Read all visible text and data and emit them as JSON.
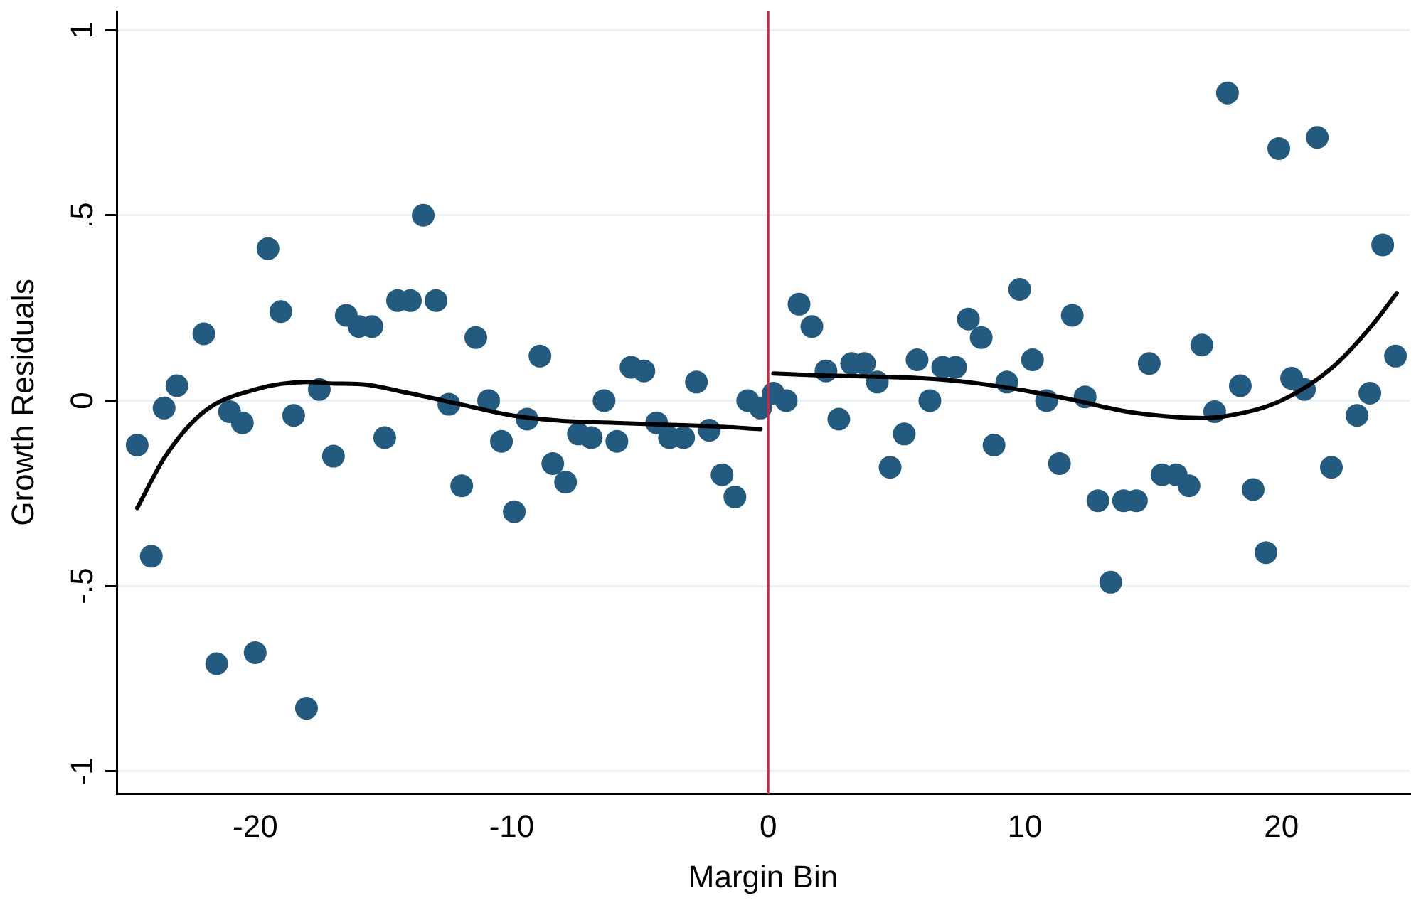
{
  "chart_data": {
    "type": "scatter",
    "xlabel": "Margin Bin",
    "ylabel": "Growth Residuals",
    "xlim": [
      -25.4,
      25
    ],
    "ylim": [
      -1.06,
      1.05
    ],
    "xticks": [
      -20,
      -10,
      0,
      10,
      20
    ],
    "yticks": [
      {
        "value": -1,
        "label": "-1"
      },
      {
        "value": -0.5,
        "label": "-.5"
      },
      0,
      {
        "value": 0.5,
        "label": ".5"
      },
      1
    ],
    "grid": "y",
    "legend": false,
    "marker": "circle",
    "ref_lines": [
      {
        "axis": "x",
        "value": 0,
        "color": "#d6213e"
      }
    ],
    "series": [
      {
        "color": "#235a80",
        "x": [
          -24.6,
          -24.05,
          -23.55,
          -23.05,
          -22,
          -21.5,
          -21,
          -20.5,
          -20,
          -19.5,
          -19,
          -18.5,
          -18,
          -17.5,
          -16.95,
          -16.45,
          -15.95,
          -15.45,
          -14.95,
          -14.45,
          -13.95,
          -13.45,
          -12.95,
          -12.45,
          -11.95,
          -11.4,
          -10.9,
          -10.4,
          -9.9,
          -9.4,
          -8.9,
          -8.4,
          -7.9,
          -7.4,
          -6.9,
          -6.4,
          -5.9,
          -5.35,
          -4.85,
          -4.35,
          -3.85,
          -3.3,
          -2.8,
          -2.3,
          -1.8,
          -1.3,
          -0.8,
          -0.3,
          0.2,
          0.7,
          1.2,
          1.7,
          2.25,
          2.75,
          3.25,
          3.75,
          4.25,
          4.75,
          5.3,
          5.8,
          6.3,
          6.8,
          7.3,
          7.8,
          8.3,
          8.8,
          9.3,
          9.8,
          10.3,
          10.85,
          11.35,
          11.85,
          12.35,
          12.85,
          13.35,
          13.85,
          14.35,
          14.85,
          15.35,
          15.9,
          16.4,
          16.9,
          17.4,
          17.9,
          18.4,
          18.9,
          19.4,
          19.9,
          20.4,
          20.9,
          21.4,
          21.95,
          22.95,
          23.45,
          23.95,
          24.45
        ],
        "values": [
          -0.12,
          -0.42,
          -0.02,
          0.04,
          0.18,
          -0.71,
          -0.03,
          -0.06,
          -0.68,
          0.41,
          0.24,
          -0.04,
          -0.83,
          0.03,
          -0.15,
          0.23,
          0.2,
          0.2,
          -0.1,
          0.27,
          0.27,
          0.5,
          0.27,
          -0.01,
          -0.23,
          0.17,
          0,
          -0.11,
          -0.3,
          -0.05,
          0.12,
          -0.17,
          -0.22,
          -0.09,
          -0.1,
          0,
          -0.11,
          0.09,
          0.08,
          -0.06,
          -0.1,
          -0.1,
          0.05,
          -0.08,
          -0.2,
          -0.26,
          0,
          -0.02,
          0.02,
          0,
          0.26,
          0.2,
          0.08,
          -0.05,
          0.1,
          0.1,
          0.05,
          -0.18,
          -0.09,
          0.11,
          0,
          0.09,
          0.09,
          0.22,
          0.17,
          -0.12,
          0.05,
          0.3,
          0.11,
          0,
          -0.17,
          0.23,
          0.01,
          -0.27,
          -0.49,
          -0.27,
          -0.27,
          0.1,
          -0.2,
          -0.2,
          -0.23,
          0.15,
          -0.03,
          0.83,
          0.04,
          -0.24,
          -0.41,
          0.68,
          0.06,
          0.03,
          0.71,
          -0.18,
          -0.04,
          0.02,
          0.42,
          0.12
        ]
      },
      {
        "type": "line",
        "color": "#000000",
        "marker": "none",
        "x": [
          -24.6,
          -23.5,
          -22,
          -20,
          -18,
          -16.9,
          -16,
          -14,
          -12,
          -10,
          -8,
          -6,
          -4,
          -2,
          -0.3
        ],
        "values": [
          -0.29,
          -0.15,
          -0.03,
          0.03,
          0.05,
          0.046,
          0.045,
          0.02,
          -0.01,
          -0.04,
          -0.055,
          -0.06,
          -0.065,
          -0.07,
          -0.077
        ]
      },
      {
        "type": "line",
        "color": "#000000",
        "marker": "none",
        "x": [
          0.2,
          2,
          4,
          6,
          8,
          10,
          12,
          14,
          16,
          17,
          18,
          20,
          22,
          23.5,
          24.5
        ],
        "values": [
          0.073,
          0.068,
          0.065,
          0.06,
          0.048,
          0.027,
          0,
          -0.03,
          -0.045,
          -0.047,
          -0.04,
          0,
          0.09,
          0.2,
          0.29
        ]
      }
    ]
  }
}
